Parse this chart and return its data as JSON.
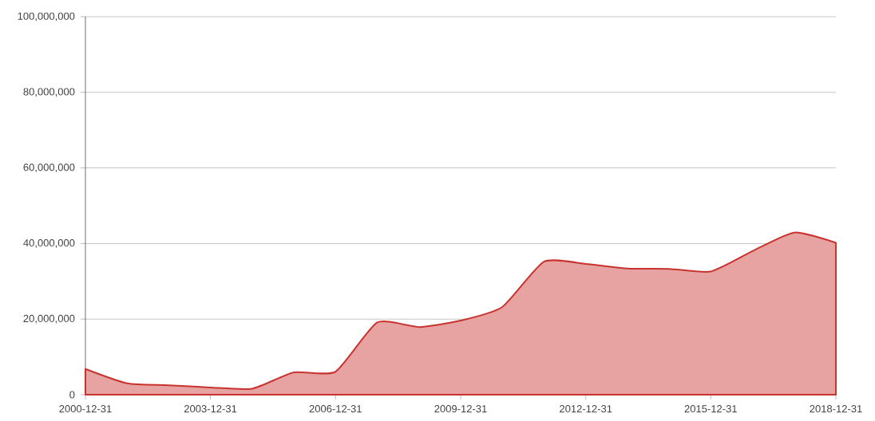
{
  "chart_data": {
    "type": "area",
    "x": [
      "2000-12-31",
      "2001-12-31",
      "2002-12-31",
      "2003-12-31",
      "2004-12-31",
      "2005-12-31",
      "2006-12-31",
      "2007-12-31",
      "2008-12-31",
      "2009-12-31",
      "2010-12-31",
      "2011-12-31",
      "2012-12-31",
      "2013-12-31",
      "2014-12-31",
      "2015-12-31",
      "2016-12-31",
      "2017-12-31",
      "2018-12-31"
    ],
    "series": [
      {
        "color": "#c8332f",
        "values": [
          6800000,
          3000000,
          2500000,
          1900000,
          1600000,
          5900000,
          6100000,
          19100000,
          17900000,
          19600000,
          23200000,
          35200000,
          34600000,
          33400000,
          33300000,
          32600000,
          38000000,
          42900000,
          40200000
        ]
      }
    ],
    "xlim": [
      "2000-12-31",
      "2018-12-31"
    ],
    "xticks": [
      "2000-12-31",
      "2003-12-31",
      "2006-12-31",
      "2009-12-31",
      "2012-12-31",
      "2015-12-31",
      "2018-12-31"
    ],
    "ylim": [
      0,
      100000000
    ],
    "yticks": [
      0,
      {
        "value": 20000000,
        "label": "20,000,000"
      },
      {
        "value": 40000000,
        "label": "40,000,000"
      },
      {
        "value": 60000000,
        "label": "60,000,000"
      },
      {
        "value": 80000000,
        "label": "80,000,000"
      },
      {
        "value": 100000000,
        "label": "100,000,000"
      }
    ],
    "grid": "y"
  }
}
